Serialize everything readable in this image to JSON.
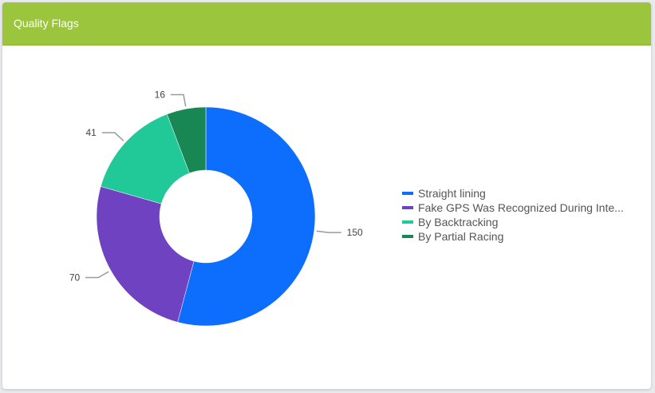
{
  "card": {
    "title": "Quality Flags",
    "header_color": "#9bc53d"
  },
  "chart_data": {
    "type": "pie",
    "variant": "donut",
    "legend_position": "right",
    "slices": [
      {
        "label": "Straight lining",
        "legend_label": "Straight lining",
        "value": 150,
        "color": "#0d6efd"
      },
      {
        "label": "Fake GPS Was Recognized During Interview",
        "legend_label": "Fake GPS Was Recognized During Inte...",
        "value": 70,
        "color": "#6f42c1"
      },
      {
        "label": "By Backtracking",
        "legend_label": "By Backtracking",
        "value": 41,
        "color": "#20c997"
      },
      {
        "label": "By Partial Racing",
        "legend_label": "By Partial Racing",
        "value": 16,
        "color": "#198754"
      }
    ]
  }
}
